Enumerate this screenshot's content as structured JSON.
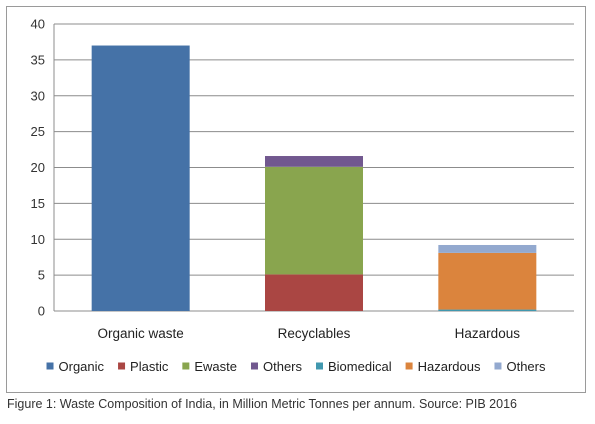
{
  "caption": "Figure 1: Waste Composition of India, in Million Metric Tonnes per annum. Source: PIB 2016",
  "chart_data": {
    "type": "bar",
    "stacked": true,
    "categories": [
      "Organic waste",
      "Recyclables",
      "Hazardous"
    ],
    "ylim": [
      0,
      40
    ],
    "yticks": [
      0,
      5,
      10,
      15,
      20,
      25,
      30,
      35,
      40
    ],
    "grid": true,
    "legend_position": "bottom",
    "series": [
      {
        "name": "Organic",
        "color": "#4572a7",
        "values": [
          37,
          0,
          0
        ]
      },
      {
        "name": "Plastic",
        "color": "#aa4643",
        "values": [
          0,
          5.1,
          0
        ]
      },
      {
        "name": "Ewaste",
        "color": "#89a54e",
        "values": [
          0,
          15,
          0
        ]
      },
      {
        "name": "Others",
        "color": "#71588f",
        "values": [
          0,
          1.5,
          0
        ]
      },
      {
        "name": "Biomedical",
        "color": "#4198af",
        "values": [
          0,
          0,
          0.2
        ]
      },
      {
        "name": "Hazardous",
        "color": "#db843d",
        "values": [
          0,
          0,
          7.9
        ]
      },
      {
        "name": "Others",
        "color": "#93a9cf",
        "values": [
          0,
          0,
          1.1
        ]
      }
    ]
  }
}
